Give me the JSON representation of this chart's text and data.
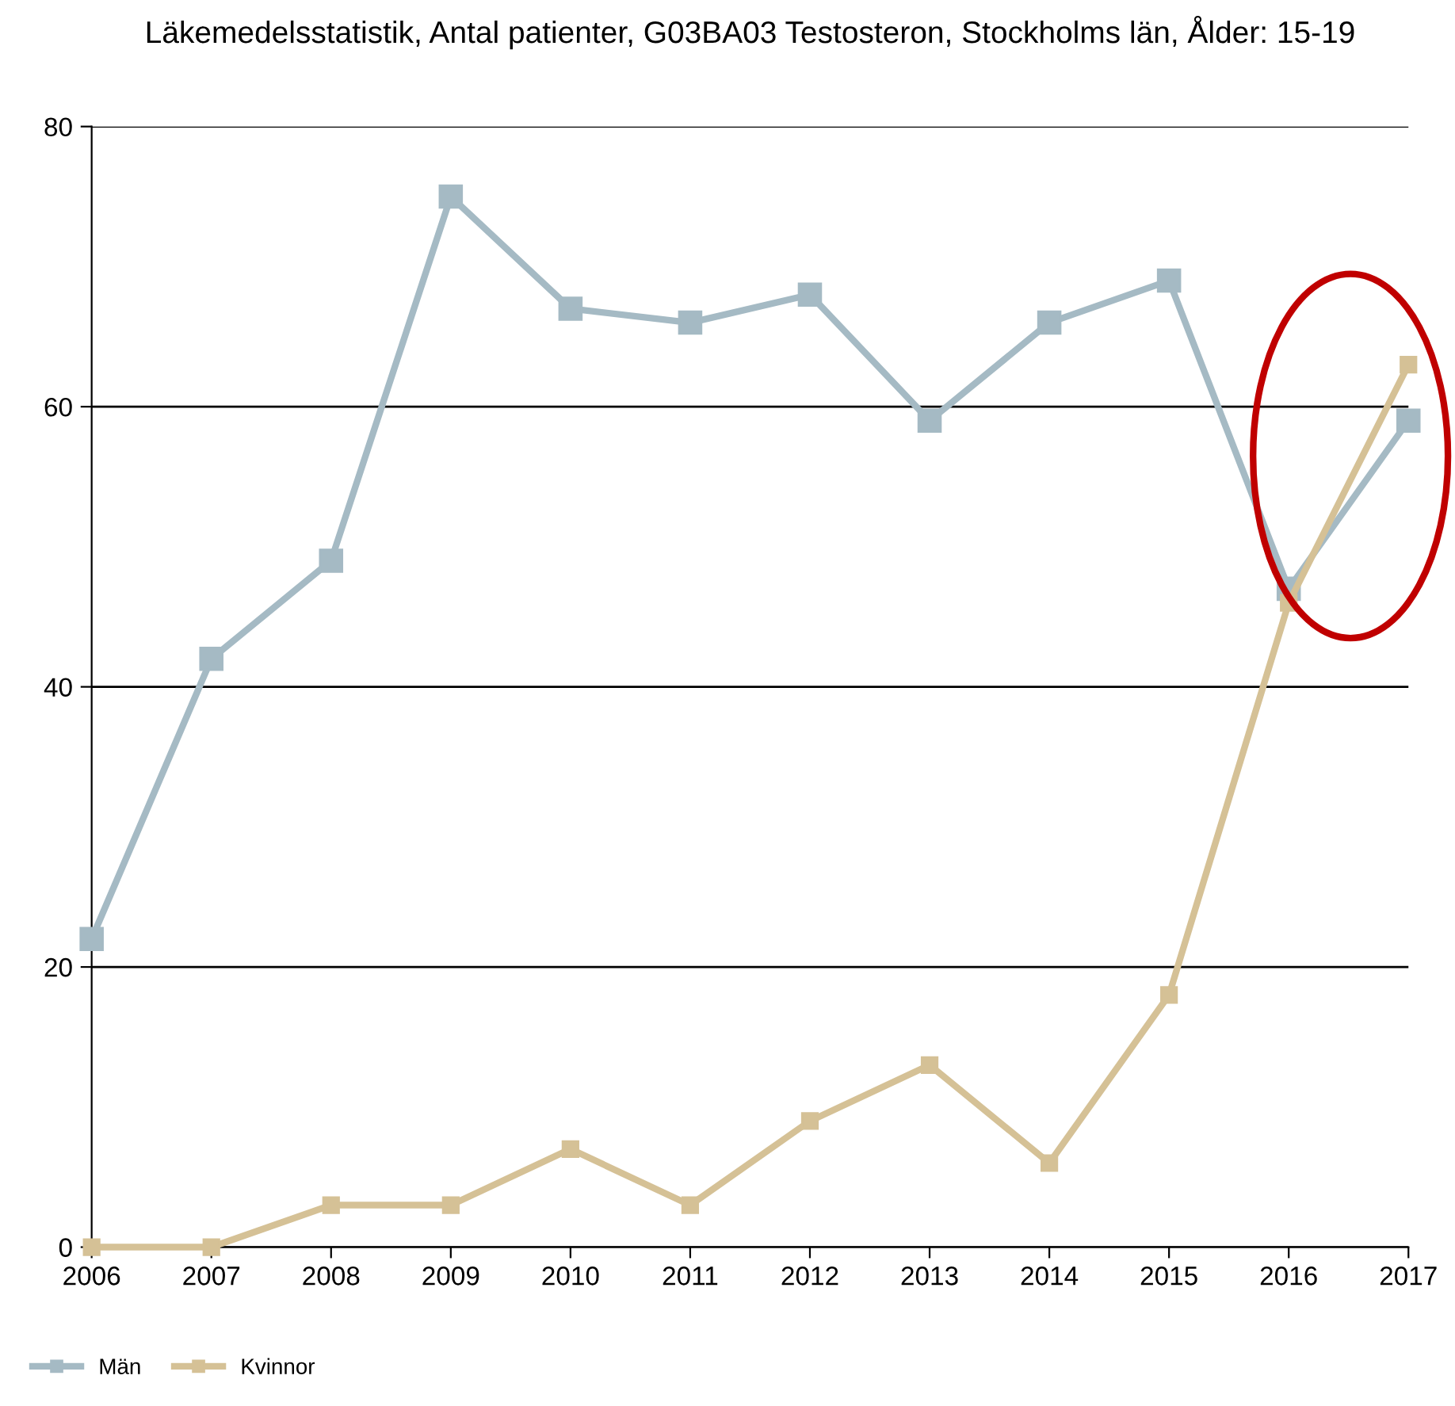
{
  "chart_data": {
    "type": "line",
    "title": "Läkemedelsstatistik, Antal patienter, G03BA03 Testosteron, Stockholms län, Ålder: 15-19",
    "categories": [
      "2006",
      "2007",
      "2008",
      "2009",
      "2010",
      "2011",
      "2012",
      "2013",
      "2014",
      "2015",
      "2016",
      "2017"
    ],
    "series": [
      {
        "name": "Män",
        "color": "#a5bac4",
        "values": [
          22,
          42,
          49,
          75,
          67,
          66,
          68,
          59,
          66,
          69,
          47,
          59
        ]
      },
      {
        "name": "Kvinnor",
        "color": "#d5c196",
        "values": [
          0,
          0,
          3,
          3,
          7,
          3,
          9,
          13,
          6,
          18,
          46,
          63
        ]
      }
    ],
    "ylim": [
      0,
      80
    ],
    "yticks": [
      0,
      20,
      40,
      60,
      80
    ],
    "grid": "y",
    "legend": "bottom left",
    "marker": "square",
    "line_style": "solid"
  }
}
